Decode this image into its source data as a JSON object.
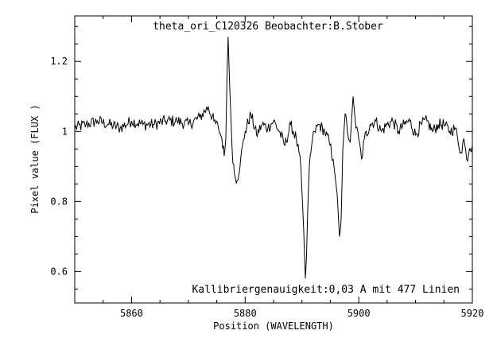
{
  "chart_data": {
    "type": "line",
    "title": "theta_ori_C120326 Beobachter:B.Stober",
    "annotation": "Kallibriergenauigkeit:0,03 A mit 477 Linien",
    "xlabel": "Position (WAVELENGTH)",
    "ylabel": "Pixel value (FLUX )",
    "xlim": [
      5850,
      5920
    ],
    "ylim": [
      0.51,
      1.33
    ],
    "x_ticks": [
      5860,
      5880,
      5900,
      5920
    ],
    "x_tick_labels": [
      "5860",
      "5880",
      "5900",
      "5920"
    ],
    "y_ticks": [
      0.6,
      0.8,
      1.0,
      1.2
    ],
    "y_tick_labels": [
      "0.6",
      "0.8",
      "1",
      "1.2"
    ],
    "grid": false,
    "legend": "none",
    "line_color": "#000000",
    "series": [
      {
        "x": [
          5850.0,
          5852.0,
          5854.0,
          5856.0,
          5858.0,
          5860.0,
          5862.0,
          5864.0,
          5866.0,
          5868.0,
          5870.0,
          5872.0,
          5873.5,
          5874.5,
          5875.3,
          5875.9,
          5876.3,
          5876.6,
          5876.8,
          5877.0,
          5877.3,
          5877.7,
          5878.1,
          5878.6,
          5879.2,
          5880.0,
          5881.0,
          5882.0,
          5883.0,
          5884.0,
          5885.0,
          5886.0,
          5887.0,
          5888.0,
          5889.0,
          5889.8,
          5890.3,
          5890.6,
          5890.8,
          5891.0,
          5891.3,
          5891.7,
          5892.2,
          5893.0,
          5894.0,
          5894.8,
          5895.5,
          5896.2,
          5896.6,
          5896.9,
          5897.2,
          5897.6,
          5898.0,
          5898.5,
          5899.0,
          5899.5,
          5900.0,
          5900.5,
          5901.0,
          5902.0,
          5903.0,
          5904.0,
          5905.0,
          5906.0,
          5907.0,
          5908.0,
          5909.0,
          5910.0,
          5911.0,
          5912.0,
          5913.0,
          5914.0,
          5915.0,
          5916.0,
          5917.0,
          5917.5,
          5918.0,
          5918.5,
          5919.0,
          5919.5,
          5920.0
        ],
        "y": [
          1.01,
          1.02,
          1.03,
          1.02,
          1.01,
          1.03,
          1.02,
          1.02,
          1.03,
          1.03,
          1.02,
          1.04,
          1.07,
          1.03,
          1.01,
          0.98,
          0.93,
          0.98,
          1.15,
          1.27,
          1.12,
          0.95,
          0.88,
          0.86,
          0.92,
          1.0,
          1.05,
          0.99,
          1.02,
          1.01,
          1.03,
          1.0,
          0.96,
          1.02,
          0.98,
          0.9,
          0.72,
          0.58,
          0.64,
          0.77,
          0.9,
          0.96,
          1.0,
          1.02,
          1.0,
          0.97,
          0.92,
          0.82,
          0.7,
          0.75,
          0.95,
          1.05,
          1.0,
          0.97,
          1.1,
          1.01,
          0.98,
          0.92,
          0.98,
          1.02,
          1.03,
          1.0,
          1.02,
          1.03,
          1.0,
          1.02,
          1.03,
          0.99,
          1.02,
          1.03,
          1.0,
          1.02,
          1.02,
          1.0,
          1.01,
          0.97,
          0.94,
          0.98,
          0.92,
          0.95,
          0.96
        ]
      }
    ]
  }
}
